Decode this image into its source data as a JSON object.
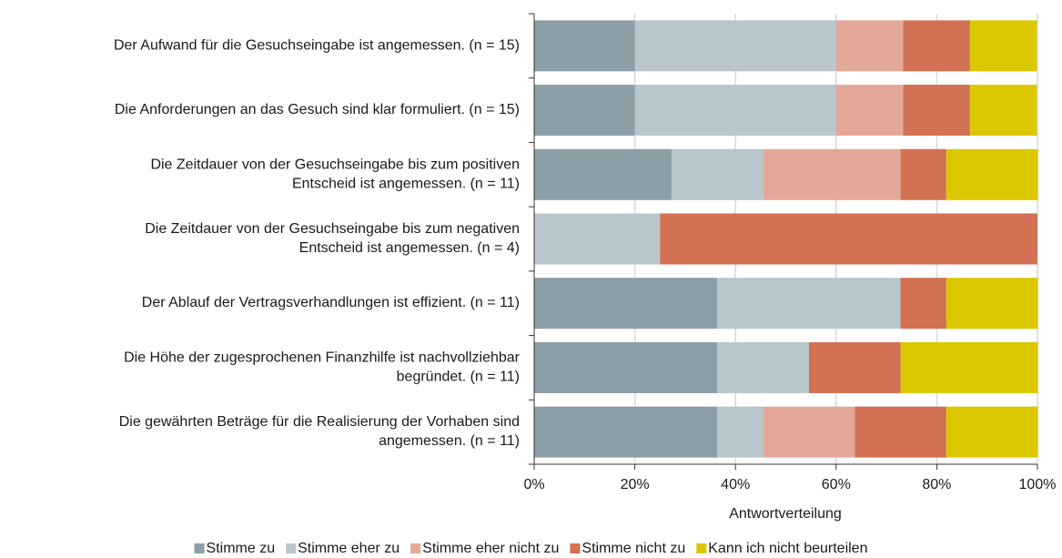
{
  "chart_data": {
    "type": "stacked_barh",
    "categories": [
      "Der Aufwand für die Gesuchseingabe ist angemessen. (n = 15)",
      "Die Anforderungen an das Gesuch sind klar formuliert. (n = 15)",
      "Die Zeitdauer von der Gesuchseingabe bis zum positiven\nEntscheid ist angemessen. (n = 11)",
      "Die Zeitdauer von der Gesuchseingabe bis zum negativen\nEntscheid ist angemessen. (n = 4)",
      "Der Ablauf der Vertragsverhandlungen ist effizient. (n = 11)",
      "Die Höhe der zugesprochenen Finanzhilfe ist nachvollziehbar\nbegründet. (n = 11)",
      "Die gewährten Beträge für die Realisierung der Vorhaben sind\nangemessen. (n = 11)"
    ],
    "series": [
      {
        "name": "Stimme zu",
        "color": "#8c9ea6",
        "values": [
          20,
          20,
          27.3,
          0,
          36.4,
          36.4,
          36.4
        ]
      },
      {
        "name": "Stimme eher zu",
        "color": "#b9c6cb",
        "values": [
          40,
          40,
          18.2,
          25,
          36.4,
          18.2,
          9.1
        ]
      },
      {
        "name": "Stimme eher nicht zu",
        "color": "#e3a898",
        "values": [
          13.3,
          13.3,
          27.3,
          0,
          0,
          0,
          18.2
        ]
      },
      {
        "name": "Stimme nicht zu",
        "color": "#d27154",
        "values": [
          13.3,
          13.3,
          9.1,
          75,
          9.1,
          18.2,
          18.2
        ]
      },
      {
        "name": "Kann ich nicht beurteilen",
        "color": "#dcc800",
        "values": [
          13.3,
          13.3,
          18.2,
          0,
          18.2,
          27.3,
          18.2
        ]
      }
    ],
    "xlim": [
      0,
      100
    ],
    "xticks": [
      {
        "value": 0,
        "label": "0%"
      },
      {
        "value": 20,
        "label": "20%"
      },
      {
        "value": 40,
        "label": "40%"
      },
      {
        "value": 60,
        "label": "60%"
      },
      {
        "value": 80,
        "label": "80%"
      },
      {
        "value": 100,
        "label": "100%"
      }
    ],
    "xlabel": "Antwortverteilung",
    "grid": true,
    "legend": "bottom"
  }
}
